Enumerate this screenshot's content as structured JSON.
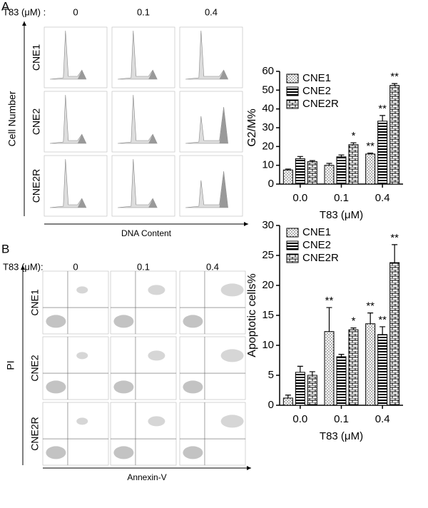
{
  "panels": [
    {
      "label": "A",
      "dose_label": "T83 (μM) :",
      "doses": [
        "0",
        "0.1",
        "0.4"
      ],
      "rows": [
        "CNE1",
        "CNE2",
        "CNE2R"
      ],
      "y_label": "Cell Number",
      "x_label": "DNA Content",
      "kind": "histogram"
    },
    {
      "label": "B",
      "dose_label": "T83 (μM):",
      "doses": [
        "0",
        "0.1",
        "0.4"
      ],
      "rows": [
        "CNE1",
        "CNE2",
        "CNE2R"
      ],
      "y_label": "PI",
      "x_label": "Annexin-V",
      "kind": "scatter"
    }
  ],
  "chart_data": [
    {
      "type": "bar",
      "y_label": "G2/M%",
      "x_label": "T83 (μM)",
      "categories": [
        "0.0",
        "0.1",
        "0.4"
      ],
      "ylim": [
        0,
        60
      ],
      "yticks": [
        0,
        10,
        20,
        30,
        40,
        50,
        60
      ],
      "legend": "upper left",
      "series": [
        {
          "name": "CNE1",
          "pattern": "dots",
          "values": [
            7.5,
            10,
            16
          ],
          "errors": [
            0.5,
            1,
            0.5
          ],
          "annotations": [
            null,
            null,
            "**"
          ]
        },
        {
          "name": "CNE2",
          "pattern": "stripes",
          "values": [
            13.5,
            14.5,
            33.5
          ],
          "errors": [
            1.2,
            1,
            3
          ],
          "annotations": [
            null,
            null,
            "**"
          ]
        },
        {
          "name": "CNE2R",
          "pattern": "bricks",
          "values": [
            12,
            21,
            52.5
          ],
          "errors": [
            0.5,
            1,
            1
          ],
          "annotations": [
            null,
            "*",
            "**"
          ]
        }
      ]
    },
    {
      "type": "bar",
      "y_label": "Apoptotic cells%",
      "x_label": "T83 (μM)",
      "categories": [
        "0.0",
        "0.1",
        "0.4"
      ],
      "ylim": [
        0,
        30
      ],
      "yticks": [
        0,
        5,
        10,
        15,
        20,
        25,
        30
      ],
      "legend": "upper left",
      "series": [
        {
          "name": "CNE1",
          "pattern": "dots",
          "values": [
            1.2,
            12.3,
            13.6
          ],
          "errors": [
            0.5,
            4,
            1.8
          ],
          "annotations": [
            null,
            "**",
            "**"
          ]
        },
        {
          "name": "CNE2",
          "pattern": "stripes",
          "values": [
            5.5,
            8.1,
            11.8
          ],
          "errors": [
            1,
            0.4,
            1.3
          ],
          "annotations": [
            null,
            null,
            "**"
          ]
        },
        {
          "name": "CNE2R",
          "pattern": "bricks",
          "values": [
            5,
            12.6,
            23.8
          ],
          "errors": [
            0.6,
            0.3,
            3
          ],
          "annotations": [
            null,
            "*",
            "**"
          ]
        }
      ]
    }
  ]
}
